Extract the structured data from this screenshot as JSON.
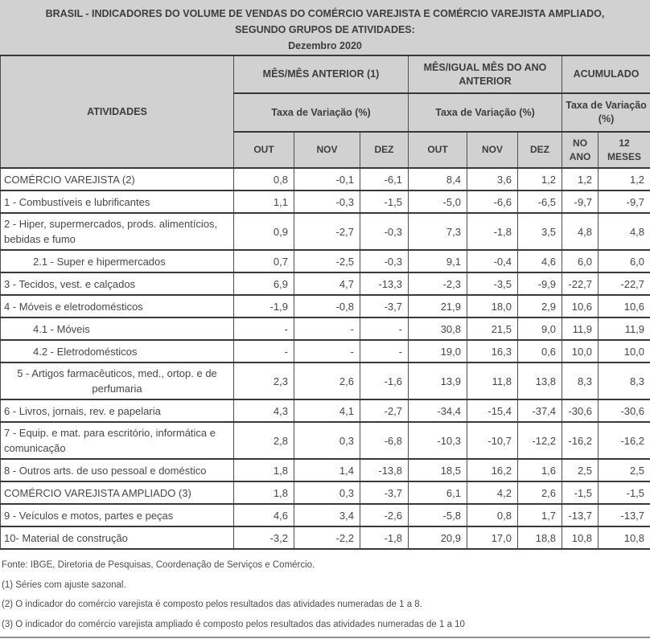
{
  "title": {
    "line1": "BRASIL - INDICADORES DO VOLUME DE VENDAS DO COMÉRCIO VAREJISTA E COMÉRCIO VAREJISTA AMPLIADO,",
    "line2": "SEGUNDO GRUPOS DE ATIVIDADES:",
    "line3": "Dezembro 2020"
  },
  "colors": {
    "header_background": "#d1d1d1",
    "border_dark": "#383838",
    "text_dark": "#3d3d3d"
  },
  "table": {
    "header": {
      "activities": "ATIVIDADES",
      "group_month_prev": "MÊS/MÊS ANTERIOR (1)",
      "group_month_yoy": "MÊS/IGUAL MÊS DO ANO ANTERIOR",
      "group_accumulated": "ACUMULADO",
      "subheader": "Taxa de Variação (%)",
      "months": [
        "OUT",
        "NOV",
        "DEZ",
        "OUT",
        "NOV",
        "DEZ"
      ],
      "accumulated_cols": [
        "NO ANO",
        "12 MESES"
      ]
    },
    "rows": [
      {
        "label": "COMÉRCIO VAREJISTA (2)",
        "indent": false,
        "center": false,
        "values": [
          "0,8",
          "-0,1",
          "-6,1",
          "8,4",
          "3,6",
          "1,2",
          "1,2",
          "1,2"
        ]
      },
      {
        "label": "1 - Combustíveis e lubrificantes",
        "indent": false,
        "center": false,
        "values": [
          "1,1",
          "-0,3",
          "-1,5",
          "-5,0",
          "-6,6",
          "-6,5",
          "-9,7",
          "-9,7"
        ]
      },
      {
        "label": "2 - Hiper, supermercados, prods. alimentícios, bebidas e fumo",
        "indent": false,
        "center": false,
        "values": [
          "0,9",
          "-2,7",
          "-0,3",
          "7,3",
          "-1,8",
          "3,5",
          "4,8",
          "4,8"
        ]
      },
      {
        "label": "2.1 - Super e hipermercados",
        "indent": true,
        "center": false,
        "values": [
          "0,7",
          "-2,5",
          "-0,3",
          "9,1",
          "-0,4",
          "4,6",
          "6,0",
          "6,0"
        ]
      },
      {
        "label": "3 - Tecidos, vest. e calçados",
        "indent": false,
        "center": false,
        "values": [
          "6,9",
          "4,7",
          "-13,3",
          "-2,3",
          "-3,5",
          "-9,9",
          "-22,7",
          "-22,7"
        ]
      },
      {
        "label": "4 - Móveis e eletrodomésticos",
        "indent": false,
        "center": false,
        "values": [
          "-1,9",
          "-0,8",
          "-3,7",
          "21,9",
          "18,0",
          "2,9",
          "10,6",
          "10,6"
        ]
      },
      {
        "label": "4.1 - Móveis",
        "indent": true,
        "center": false,
        "values": [
          "-",
          "-",
          "-",
          "30,8",
          "21,5",
          "9,0",
          "11,9",
          "11,9"
        ]
      },
      {
        "label": "4.2 - Eletrodomésticos",
        "indent": true,
        "center": false,
        "values": [
          "-",
          "-",
          "-",
          "19,0",
          "16,3",
          "0,6",
          "10,0",
          "10,0"
        ]
      },
      {
        "label": "5 - Artigos farmacêuticos, med., ortop. e de perfumaria",
        "indent": false,
        "center": true,
        "values": [
          "2,3",
          "2,6",
          "-1,6",
          "13,9",
          "11,8",
          "13,8",
          "8,3",
          "8,3"
        ]
      },
      {
        "label": "6 - Livros, jornais, rev. e papelaria",
        "indent": false,
        "center": false,
        "values": [
          "4,3",
          "4,1",
          "-2,7",
          "-34,4",
          "-15,4",
          "-37,4",
          "-30,6",
          "-30,6"
        ]
      },
      {
        "label": "7 - Equip. e mat. para escritório, informática e comunicação",
        "indent": false,
        "center": false,
        "values": [
          "2,8",
          "0,3",
          "-6,8",
          "-10,3",
          "-10,7",
          "-12,2",
          "-16,2",
          "-16,2"
        ]
      },
      {
        "label": "8 - Outros arts. de uso pessoal e doméstico",
        "indent": false,
        "center": false,
        "values": [
          "1,8",
          "1,4",
          "-13,8",
          "18,5",
          "16,2",
          "1,6",
          "2,5",
          "2,5"
        ]
      },
      {
        "label": "COMÉRCIO VAREJISTA AMPLIADO (3)",
        "indent": false,
        "center": false,
        "values": [
          "1,8",
          "0,3",
          "-3,7",
          "6,1",
          "4,2",
          "2,6",
          "-1,5",
          "-1,5"
        ]
      },
      {
        "label": "9 - Veículos e motos, partes e peças",
        "indent": false,
        "center": false,
        "values": [
          "4,6",
          "3,4",
          "-2,6",
          "-5,8",
          "0,8",
          "1,7",
          "-13,7",
          "-13,7"
        ]
      },
      {
        "label": "10- Material de construção",
        "indent": false,
        "center": false,
        "values": [
          "-3,2",
          "-2,2",
          "-1,8",
          "20,9",
          "17,0",
          "18,8",
          "10,8",
          "10,8"
        ]
      }
    ]
  },
  "footer": {
    "source": "Fonte: IBGE, Diretoria de Pesquisas, Coordenação de Serviços e Comércio.",
    "notes": [
      "(1) Séries com ajuste sazonal.",
      "(2) O indicador do comércio varejista é composto pelos resultados das atividades numeradas de 1 a 8.",
      "(3) O indicador do comércio varejista ampliado é composto pelos resultados das atividades numeradas de 1 a 10"
    ]
  }
}
